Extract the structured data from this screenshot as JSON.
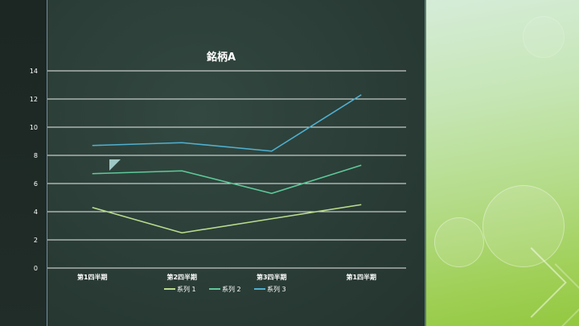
{
  "colors": {
    "background_left": "#1f2b27",
    "chalkboard": "#2b3d37",
    "accent_panel": "#b3db86",
    "gridline": "#ffffff",
    "series_1": "#b8dc8c",
    "series_2": "#5ec99a",
    "series_3": "#4fb0d0",
    "marker": "#9fc7c4"
  },
  "chart_data": {
    "type": "line",
    "title": "銘柄A",
    "xlabel": "",
    "ylabel": "",
    "categories": [
      "第1四半期",
      "第2四半期",
      "第3四半期",
      "第1四半期"
    ],
    "ylim": [
      0,
      14
    ],
    "yticks": [
      0,
      2,
      4,
      6,
      8,
      10,
      12,
      14
    ],
    "grid": true,
    "legend_position": "bottom",
    "series": [
      {
        "name": "系列 1",
        "values": [
          4.3,
          2.5,
          3.5,
          4.5
        ]
      },
      {
        "name": "系列 2",
        "values": [
          6.7,
          6.9,
          5.3,
          7.3
        ]
      },
      {
        "name": "系列 3",
        "values": [
          8.7,
          8.9,
          8.3,
          12.3
        ]
      }
    ]
  },
  "decorations": {
    "marker_icon": "triangle-marker-icon"
  }
}
